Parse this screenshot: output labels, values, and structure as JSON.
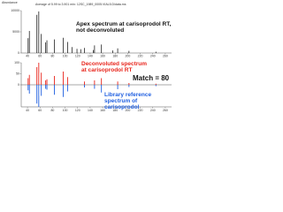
{
  "chart_data": [
    {
      "type": "bar",
      "title": "Average of 5.99 to 3.901 min: 12SC_1989_0005.VIAL5.D\\data.ms",
      "y_label": "Abundance",
      "annotation": "Apex spectrum at carisoprodol RT, not deconvoluted",
      "color": "#222222",
      "x": [
        41,
        43,
        55,
        58,
        62,
        69,
        71,
        83,
        97,
        104,
        111,
        119,
        125,
        131,
        145,
        147,
        158,
        176,
        184,
        202,
        245
      ],
      "values": [
        3500,
        5200,
        9000,
        9800,
        4500,
        2500,
        3000,
        3200,
        3600,
        2600,
        1400,
        1000,
        900,
        1200,
        700,
        1800,
        2000,
        600,
        1100,
        500,
        300
      ],
      "xlim": [
        30,
        270
      ],
      "xticks": [
        40,
        60,
        80,
        100,
        120,
        140,
        160,
        180,
        200,
        220,
        240,
        260
      ],
      "ylim": [
        0,
        10000
      ],
      "yticks": [
        0,
        5000,
        10000
      ]
    },
    {
      "type": "mirror",
      "annotation": "Match = 80",
      "x": [
        41,
        43,
        55,
        58,
        62,
        69,
        71,
        83,
        97,
        104,
        131,
        147,
        158,
        184,
        202,
        245
      ],
      "series": [
        {
          "name": "Deconvoluted spectrum at carisoprodol RT",
          "color": "#e8251c",
          "mirror": false,
          "values": [
            30,
            45,
            80,
            100,
            55,
            20,
            25,
            40,
            60,
            35,
            15,
            20,
            30,
            15,
            8,
            5
          ]
        },
        {
          "name": "Library reference spectrum of carisoprodol",
          "color": "#1e5ee0",
          "mirror": true,
          "values": [
            25,
            40,
            85,
            100,
            50,
            18,
            22,
            45,
            55,
            30,
            12,
            18,
            35,
            20,
            10,
            6
          ]
        }
      ],
      "xlim": [
        30,
        270
      ],
      "xticks": [
        40,
        60,
        80,
        100,
        120,
        140,
        160,
        180,
        200,
        220,
        240,
        260
      ],
      "ylim": [
        0,
        100
      ],
      "yticks": [
        0,
        50,
        100
      ]
    }
  ]
}
